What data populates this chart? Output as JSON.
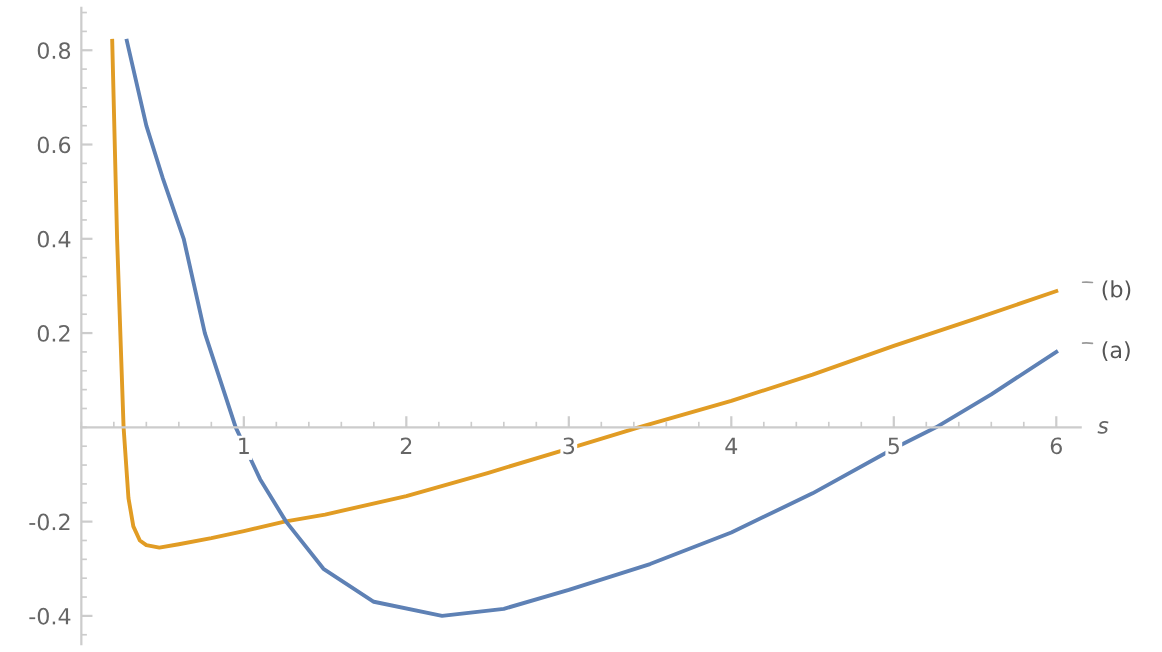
{
  "chart_data": {
    "type": "line",
    "xlabel": "s",
    "xlim": [
      0,
      6.15
    ],
    "ylim": [
      -0.46,
      0.89
    ],
    "xticks": [
      1,
      2,
      3,
      4,
      5,
      6
    ],
    "yticks": [
      -0.4,
      -0.2,
      0.2,
      0.4,
      0.6,
      0.8
    ],
    "grid": false,
    "legend": false,
    "series": [
      {
        "name": "(b)",
        "color": "#e19c24",
        "x": [
          0.19,
          0.22,
          0.26,
          0.29,
          0.32,
          0.36,
          0.4,
          0.48,
          0.6,
          0.8,
          1.0,
          1.25,
          1.5,
          2.0,
          2.5,
          3.0,
          3.43,
          4.0,
          4.5,
          5.0,
          5.5,
          6.0
        ],
        "values": [
          0.82,
          0.4,
          0.0,
          -0.15,
          -0.21,
          -0.24,
          -0.25,
          -0.255,
          -0.248,
          -0.235,
          -0.22,
          -0.2,
          -0.185,
          -0.146,
          -0.097,
          -0.045,
          0.0,
          0.056,
          0.112,
          0.173,
          0.23,
          0.289
        ]
      },
      {
        "name": "(a)",
        "color": "#5e81b5",
        "x": [
          0.28,
          0.4,
          0.5,
          0.63,
          0.76,
          0.95,
          1.1,
          1.26,
          1.49,
          1.8,
          2.22,
          2.6,
          3.0,
          3.5,
          4.0,
          4.5,
          5.0,
          5.26,
          5.6,
          6.0
        ],
        "values": [
          0.82,
          0.64,
          0.53,
          0.4,
          0.2,
          0.0,
          -0.11,
          -0.2,
          -0.3,
          -0.37,
          -0.4,
          -0.385,
          -0.345,
          -0.29,
          -0.223,
          -0.14,
          -0.045,
          0.0,
          0.07,
          0.16
        ]
      }
    ]
  }
}
